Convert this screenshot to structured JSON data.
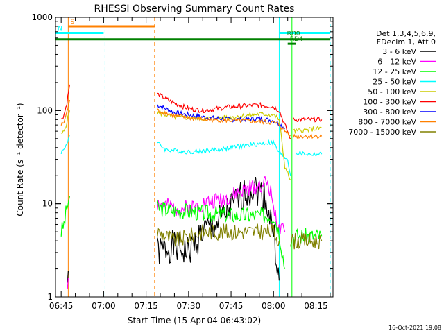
{
  "chart_data": {
    "type": "line",
    "title": "RHESSI Observing Summary Count Rates",
    "xlabel": "Start Time (15-Apr-04 06:43:02)",
    "ylabel": "Count Rate (s⁻¹ detector⁻¹)",
    "yscale": "log",
    "ylim": [
      1,
      1000
    ],
    "xlim": [
      "06:43",
      "08:21"
    ],
    "grid": false,
    "legend_position": "right",
    "x_ticks": [
      "06:45",
      "07:00",
      "07:15",
      "07:30",
      "07:45",
      "08:00",
      "08:15"
    ],
    "y_ticks": [
      "1",
      "10",
      "100",
      "1000"
    ],
    "legend_header": [
      "Det 1,3,4,5,6,9,",
      "FDecim 1, Att 0"
    ],
    "footer_date": "16-Oct-2021 19:08",
    "series": [
      {
        "name": "3 - 6 keV",
        "color": "#000000",
        "segments": [
          {
            "x": [
              "06:47",
              "06:47.5"
            ],
            "y": [
              1.4,
              1.9
            ]
          },
          {
            "x": [
              "07:19",
              "07:24",
              "07:30",
              "07:35",
              "07:40",
              "07:45",
              "07:50",
              "07:53",
              "07:57",
              "08:00",
              "08:02"
            ],
            "y": [
              3,
              3.5,
              3,
              5,
              6,
              9,
              13,
              15,
              12,
              5,
              1.5
            ]
          }
        ]
      },
      {
        "name": "6 - 12 keV",
        "color": "#ff00ff",
        "segments": [
          {
            "x": [
              "06:47",
              "06:47.5"
            ],
            "y": [
              1.3,
              1.6
            ]
          },
          {
            "x": [
              "07:19",
              "07:25",
              "07:30",
              "07:35",
              "07:40",
              "07:45",
              "07:50",
              "07:55",
              "07:58",
              "08:00",
              "08:02",
              "08:04"
            ],
            "y": [
              10,
              9,
              9,
              10,
              11,
              12,
              14,
              16,
              17,
              10,
              5,
              5
            ]
          }
        ]
      },
      {
        "name": "12 - 25 keV",
        "color": "#00ff00",
        "segments": [
          {
            "x": [
              "06:45",
              "06:46",
              "06:47",
              "06:48"
            ],
            "y": [
              5,
              6,
              9,
              12
            ]
          },
          {
            "x": [
              "07:19",
              "07:25",
              "07:35",
              "07:45",
              "07:55",
              "08:00",
              "08:02",
              "08:04"
            ],
            "y": [
              9,
              8.5,
              8,
              7.5,
              7.5,
              7.5,
              5,
              2
            ]
          },
          {
            "x": [
              "08:07",
              "08:12",
              "08:17"
            ],
            "y": [
              4.5,
              4.5,
              4.5
            ]
          }
        ]
      },
      {
        "name": "25 - 50 keV",
        "color": "#00ffff",
        "segments": [
          {
            "x": [
              "06:45",
              "06:46",
              "06:47",
              "06:48"
            ],
            "y": [
              36,
              38,
              45,
              55
            ]
          },
          {
            "x": [
              "07:19",
              "07:22",
              "07:30",
              "07:40",
              "07:50",
              "07:58",
              "08:00",
              "08:02",
              "08:05",
              "08:06"
            ],
            "y": [
              45,
              38,
              36,
              38,
              42,
              45,
              45,
              35,
              30,
              20
            ]
          },
          {
            "x": [
              "08:08",
              "08:12",
              "08:17"
            ],
            "y": [
              35,
              34,
              34
            ]
          }
        ]
      },
      {
        "name": "50 - 100 keV",
        "color": "#cccc00",
        "segments": [
          {
            "x": [
              "06:45",
              "06:46",
              "06:47",
              "06:48"
            ],
            "y": [
              55,
              60,
              75,
              100
            ]
          },
          {
            "x": [
              "07:19",
              "07:25",
              "07:35",
              "07:45",
              "07:55",
              "08:00",
              "08:02",
              "08:04",
              "08:06"
            ],
            "y": [
              95,
              85,
              82,
              85,
              92,
              90,
              80,
              25,
              18
            ]
          },
          {
            "x": [
              "08:07",
              "08:12",
              "08:17"
            ],
            "y": [
              60,
              62,
              65
            ]
          }
        ]
      },
      {
        "name": "100 - 300 keV",
        "color": "#ff0000",
        "segments": [
          {
            "x": [
              "06:45",
              "06:46",
              "06:47",
              "06:48"
            ],
            "y": [
              80,
              90,
              120,
              190
            ]
          },
          {
            "x": [
              "07:19",
              "07:25",
              "07:30",
              "07:35",
              "07:45",
              "07:55",
              "08:00",
              "08:02",
              "08:04",
              "08:06"
            ],
            "y": [
              150,
              120,
              105,
              100,
              110,
              115,
              110,
              100,
              70,
              50
            ]
          },
          {
            "x": [
              "08:07",
              "08:12",
              "08:17"
            ],
            "y": [
              80,
              80,
              80
            ]
          }
        ]
      },
      {
        "name": "300 - 800 keV",
        "color": "#0000ff",
        "segments": [
          {
            "x": [
              "07:19",
              "07:25",
              "07:35",
              "07:45",
              "07:55",
              "08:00",
              "08:02",
              "08:04"
            ],
            "y": [
              115,
              95,
              85,
              80,
              82,
              78,
              72,
              65
            ]
          }
        ]
      },
      {
        "name": "800 - 7000 keV",
        "color": "#ff8000",
        "segments": [
          {
            "x": [
              "06:45",
              "06:46",
              "06:47",
              "06:48"
            ],
            "y": [
              70,
              75,
              95,
              130
            ]
          },
          {
            "x": [
              "07:19",
              "07:25",
              "07:35",
              "07:45",
              "07:55",
              "08:00",
              "08:02",
              "08:04",
              "08:06"
            ],
            "y": [
              100,
              88,
              80,
              78,
              76,
              74,
              70,
              60,
              55
            ]
          },
          {
            "x": [
              "08:07",
              "08:12",
              "08:17"
            ],
            "y": [
              53,
              53,
              53
            ]
          }
        ]
      },
      {
        "name": "7000 - 15000 keV",
        "color": "#808000",
        "segments": [
          {
            "x": [
              "07:19",
              "07:25",
              "07:35",
              "07:45",
              "07:55",
              "08:00",
              "08:02"
            ],
            "y": [
              5,
              4,
              5,
              5,
              5,
              5,
              4
            ]
          },
          {
            "x": [
              "08:06",
              "08:12",
              "08:17"
            ],
            "y": [
              4,
              4,
              4
            ]
          }
        ]
      }
    ],
    "annotations": [
      {
        "label": "S",
        "color": "#ff8000",
        "x": [
          "06:47.5",
          "07:18"
        ],
        "y": 800
      },
      {
        "label": "N",
        "color": "#00ffff",
        "x": [
          "06:43",
          "07:00"
        ],
        "y": 680
      },
      {
        "label": "",
        "color": "#00ffff",
        "x": [
          "08:02",
          "08:20"
        ],
        "y": 680
      },
      {
        "label": "",
        "color": "#008000",
        "x": [
          "06:43",
          "08:20"
        ],
        "y": 580
      },
      {
        "label": "RD4",
        "color": "#008000",
        "x": [
          "08:05",
          "08:08"
        ],
        "y": 520
      },
      {
        "label": "RD0",
        "color": "#008000",
        "x": [
          "08:04",
          "08:04"
        ],
        "y": 600
      }
    ],
    "vertical_lines": [
      {
        "x": "06:47.5",
        "color": "#ff8000",
        "style": "solid"
      },
      {
        "x": "07:00.5",
        "color": "#00ffff",
        "style": "dashed"
      },
      {
        "x": "07:18",
        "color": "#ff8000",
        "style": "dashed"
      },
      {
        "x": "08:02",
        "color": "#00ffff",
        "style": "solid"
      },
      {
        "x": "08:06.5",
        "color": "#00ff00",
        "style": "solid"
      },
      {
        "x": "08:20",
        "color": "#00ffff",
        "style": "dashed"
      }
    ]
  }
}
